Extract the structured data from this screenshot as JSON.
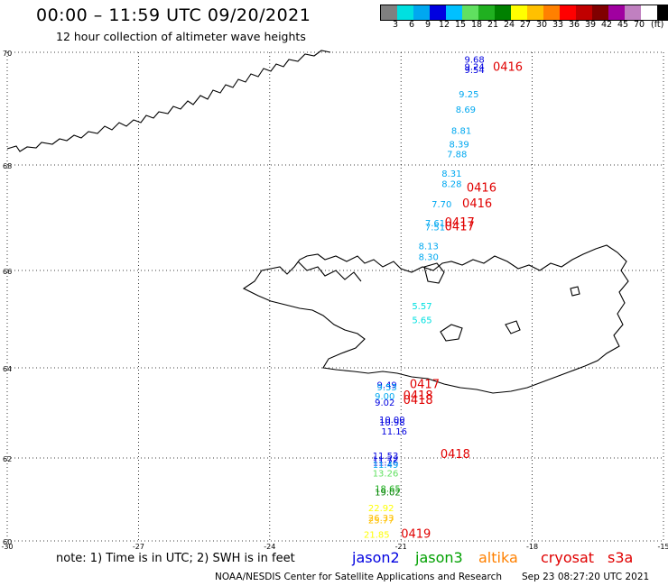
{
  "header": {
    "title": "00:00 – 11:59 UTC 09/20/2021",
    "subtitle": "12 hour collection of altimeter wave heights"
  },
  "color_scale": {
    "unit": "(ft)",
    "colors": [
      "#808080",
      "#00e0e0",
      "#00a8f0",
      "#0000e0",
      "#00c0ff",
      "#60e060",
      "#20b020",
      "#008000",
      "#ffff00",
      "#ffc000",
      "#ff8000",
      "#ff0000",
      "#c00000",
      "#800000",
      "#a000a0",
      "#c080c0",
      "#ffffff",
      "#000000"
    ],
    "labels": [
      "3",
      "6",
      "9",
      "12",
      "15",
      "18",
      "21",
      "24",
      "27",
      "30",
      "33",
      "36",
      "39",
      "42",
      "45",
      "70"
    ]
  },
  "map": {
    "lat_labels": [
      "70",
      "68",
      "66",
      "64",
      "62",
      "60"
    ],
    "lon_labels": [
      "-30",
      "-27",
      "-24",
      "-21",
      "-18",
      "-15"
    ],
    "wave_labels": [
      {
        "text": "9.68",
        "lon": -19.55,
        "lat": 69.82,
        "color": "#0000e0"
      },
      {
        "text": "9.24",
        "lon": -19.55,
        "lat": 69.69,
        "color": "#0000e0"
      },
      {
        "text": "9.54",
        "lon": -19.55,
        "lat": 69.63,
        "color": "#0000e0"
      },
      {
        "text": "9.25",
        "lon": -19.68,
        "lat": 69.2,
        "color": "#00a8f0"
      },
      {
        "text": "8.69",
        "lon": -19.75,
        "lat": 68.93,
        "color": "#00a8f0"
      },
      {
        "text": "8.81",
        "lon": -19.85,
        "lat": 68.55,
        "color": "#00a8f0"
      },
      {
        "text": "8.39",
        "lon": -19.9,
        "lat": 68.31,
        "color": "#00a8f0"
      },
      {
        "text": "7.88",
        "lon": -19.95,
        "lat": 68.14,
        "color": "#00a8f0"
      },
      {
        "text": "8.31",
        "lon": -20.07,
        "lat": 67.78,
        "color": "#00a8f0"
      },
      {
        "text": "8.28",
        "lon": -20.07,
        "lat": 67.58,
        "color": "#00a8f0"
      },
      {
        "text": "7.70",
        "lon": -20.3,
        "lat": 67.2,
        "color": "#00a8f0"
      },
      {
        "text": "7.61",
        "lon": -20.45,
        "lat": 66.84,
        "color": "#00a8f0"
      },
      {
        "text": "7.51",
        "lon": -20.45,
        "lat": 66.76,
        "color": "#00a8f0"
      },
      {
        "text": "8.13",
        "lon": -20.6,
        "lat": 66.4,
        "color": "#00a8f0"
      },
      {
        "text": "8.30",
        "lon": -20.6,
        "lat": 66.2,
        "color": "#00a8f0"
      },
      {
        "text": "5.57",
        "lon": -20.75,
        "lat": 65.2,
        "color": "#00e0e0"
      },
      {
        "text": "5.65",
        "lon": -20.75,
        "lat": 64.92,
        "color": "#00e0e0"
      },
      {
        "text": "9.49",
        "lon": -21.55,
        "lat": 63.55,
        "color": "#0000e0"
      },
      {
        "text": "9.53",
        "lon": -21.55,
        "lat": 63.5,
        "color": "#00a8f0"
      },
      {
        "text": "9.00",
        "lon": -21.6,
        "lat": 63.3,
        "color": "#00a8f0"
      },
      {
        "text": "9.02",
        "lon": -21.6,
        "lat": 63.16,
        "color": "#0000e0"
      },
      {
        "text": "10.00",
        "lon": -21.5,
        "lat": 62.78,
        "color": "#0000e0"
      },
      {
        "text": "10.98",
        "lon": -21.5,
        "lat": 62.72,
        "color": "#0000e0"
      },
      {
        "text": "11.16",
        "lon": -21.45,
        "lat": 62.52,
        "color": "#0000e0"
      },
      {
        "text": "11.53",
        "lon": -21.65,
        "lat": 61.98,
        "color": "#0000e0"
      },
      {
        "text": "11.72",
        "lon": -21.65,
        "lat": 61.88,
        "color": "#0000e0"
      },
      {
        "text": "11.26",
        "lon": -21.65,
        "lat": 61.82,
        "color": "#0000e0"
      },
      {
        "text": "11.49",
        "lon": -21.65,
        "lat": 61.76,
        "color": "#00a8f0"
      },
      {
        "text": "13.26",
        "lon": -21.65,
        "lat": 61.55,
        "color": "#60e060"
      },
      {
        "text": "18.65",
        "lon": -21.6,
        "lat": 61.18,
        "color": "#20b020"
      },
      {
        "text": "19.02",
        "lon": -21.6,
        "lat": 61.1,
        "color": "#008000"
      },
      {
        "text": "22.92",
        "lon": -21.75,
        "lat": 60.72,
        "color": "#ffff00"
      },
      {
        "text": "26.33",
        "lon": -21.75,
        "lat": 60.48,
        "color": "#ffc000"
      },
      {
        "text": "25.77",
        "lon": -21.75,
        "lat": 60.42,
        "color": "#ffc000"
      },
      {
        "text": "21.85",
        "lon": -21.85,
        "lat": 60.08,
        "color": "#ffff00"
      }
    ],
    "time_labels": [
      {
        "text": "0416",
        "lon": -18.9,
        "lat": 69.67
      },
      {
        "text": "0416",
        "lon": -19.5,
        "lat": 67.5
      },
      {
        "text": "0416",
        "lon": -19.6,
        "lat": 67.2
      },
      {
        "text": "0417",
        "lon": -20.0,
        "lat": 66.84
      },
      {
        "text": "0417",
        "lon": -20.0,
        "lat": 66.76
      },
      {
        "text": "0417",
        "lon": -20.8,
        "lat": 63.55
      },
      {
        "text": "0418",
        "lon": -20.95,
        "lat": 63.3
      },
      {
        "text": "0418",
        "lon": -20.95,
        "lat": 63.2
      },
      {
        "text": "0418",
        "lon": -20.1,
        "lat": 62.0
      },
      {
        "text": "0419",
        "lon": -21.0,
        "lat": 60.08
      }
    ]
  },
  "footer": {
    "note": "note:  1) Time is in UTC;  2) SWH is in feet",
    "satellites": [
      {
        "name": "jason2",
        "color": "#0000e0"
      },
      {
        "name": "jason3",
        "color": "#00a000"
      },
      {
        "name": "altika",
        "color": "#ff8000"
      },
      {
        "name": "cryosat",
        "color": "#e00000"
      },
      {
        "name": "s3a",
        "color": "#e00000"
      }
    ],
    "credit": "NOAA/NESDIS Center for Satellite Applications and Research",
    "generated": "Sep 23 08:27:20 UTC 2021"
  }
}
